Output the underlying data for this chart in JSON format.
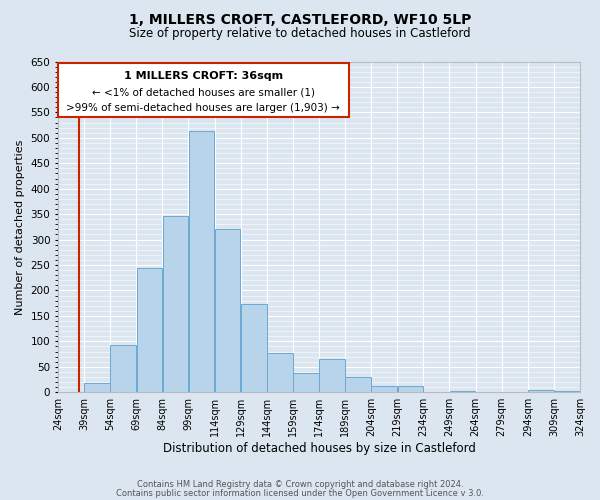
{
  "title": "1, MILLERS CROFT, CASTLEFORD, WF10 5LP",
  "subtitle": "Size of property relative to detached houses in Castleford",
  "xlabel": "Distribution of detached houses by size in Castleford",
  "ylabel": "Number of detached properties",
  "bar_color": "#b8d4ea",
  "bar_edge_color": "#6aaad4",
  "background_color": "#dce6f0",
  "plot_bg_color": "#dce6f0",
  "grid_color": "#ffffff",
  "annotation_box_color": "#ffffff",
  "annotation_border_color": "#cc2200",
  "red_line_color": "#cc2200",
  "annotation_line1": "1 MILLERS CROFT: 36sqm",
  "annotation_line2": "← <1% of detached houses are smaller (1)",
  "annotation_line3": ">99% of semi-detached houses are larger (1,903) →",
  "bins": [
    24,
    39,
    54,
    69,
    84,
    99,
    114,
    129,
    144,
    159,
    174,
    189,
    204,
    219,
    234,
    249,
    264,
    279,
    294,
    309,
    324
  ],
  "counts": [
    0,
    18,
    93,
    245,
    347,
    513,
    320,
    173,
    78,
    38,
    65,
    30,
    13,
    13,
    0,
    3,
    0,
    0,
    5,
    3
  ],
  "ylim": [
    0,
    650
  ],
  "yticks": [
    0,
    50,
    100,
    150,
    200,
    250,
    300,
    350,
    400,
    450,
    500,
    550,
    600,
    650
  ],
  "property_size": 36,
  "footer_line1": "Contains HM Land Registry data © Crown copyright and database right 2024.",
  "footer_line2": "Contains public sector information licensed under the Open Government Licence v 3.0."
}
